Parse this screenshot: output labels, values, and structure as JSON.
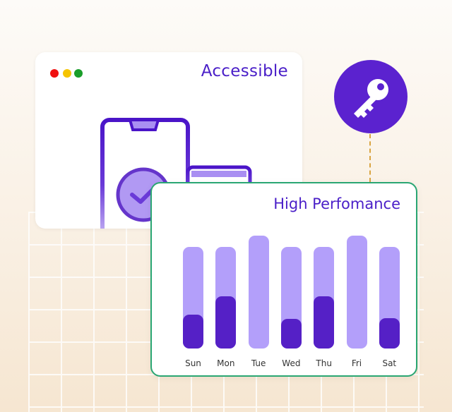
{
  "accessible_card": {
    "title": "Accessible",
    "dot_colors": [
      "#f01010",
      "#f5c400",
      "#1a9e2a"
    ]
  },
  "key_badge": {
    "icon": "key-icon",
    "color": "#5b22cf"
  },
  "performance_card": {
    "title": "High Perfomance"
  },
  "chart_data": {
    "type": "bar",
    "categories": [
      "Sun",
      "Mon",
      "Tue",
      "Wed",
      "Thu",
      "Fri",
      "Sat"
    ],
    "series": [
      {
        "values": [
          0.9,
          0.9,
          1.0,
          0.9,
          0.9,
          1.0,
          0.9
        ],
        "color": "#b39ffa"
      },
      {
        "values": [
          0.3,
          0.46,
          0,
          0.26,
          0.46,
          0,
          0.27
        ],
        "color": "#5520c6"
      }
    ]
  }
}
